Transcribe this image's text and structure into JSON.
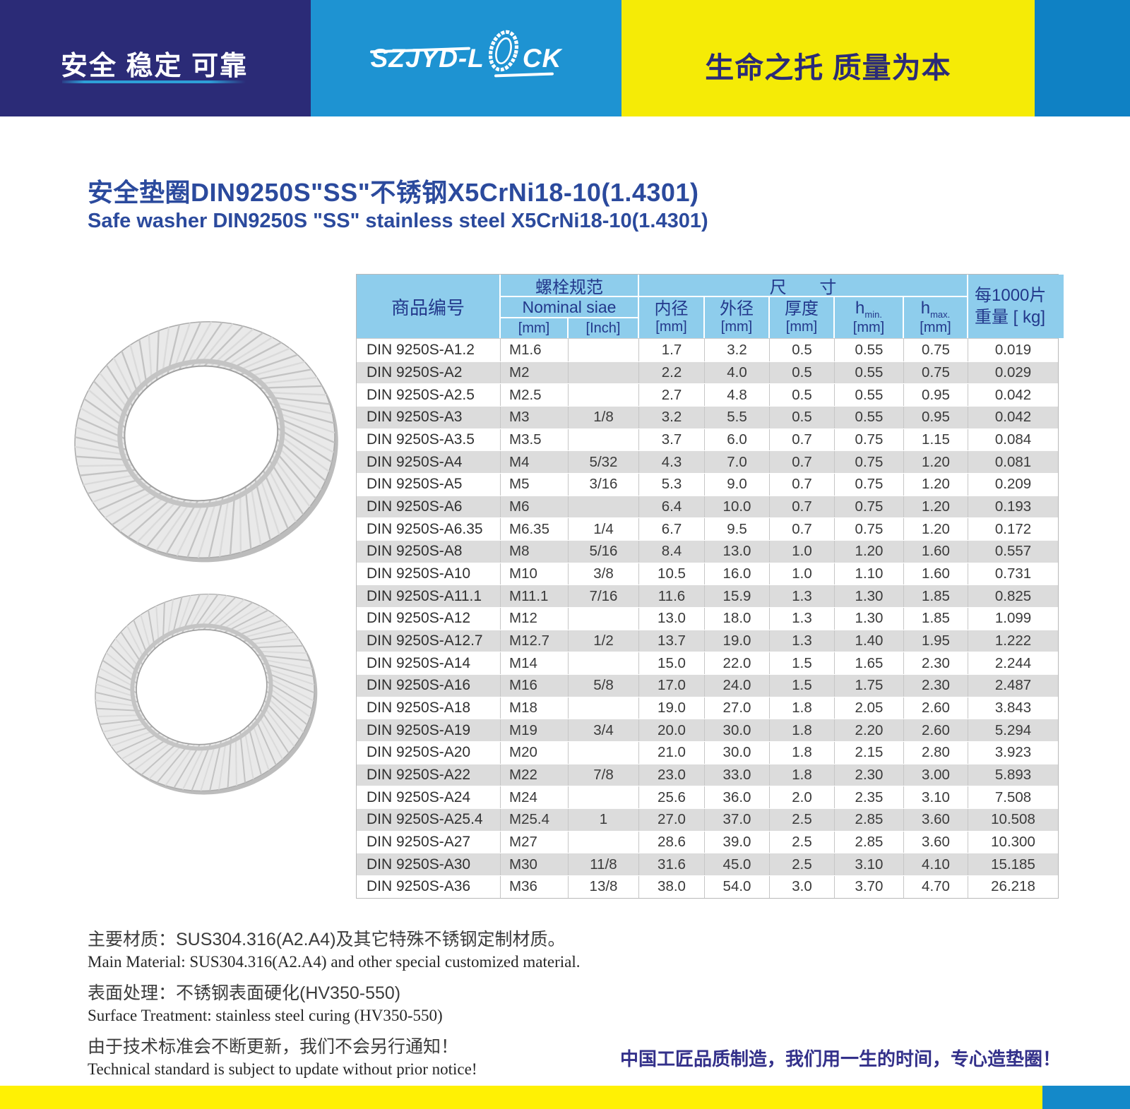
{
  "header": {
    "slogan_left": "安全 稳定 可靠",
    "logo_prefix": "SZJYD-L",
    "logo_suffix": "CK",
    "slogan_right": "生命之托  质量为本"
  },
  "title": {
    "zh": "安全垫圈DIN9250S\"SS\"不锈钢X5CrNi18-10(1.4301)",
    "en": "Safe washer DIN9250S \"SS\" stainless steel X5CrNi18-10(1.4301)"
  },
  "table": {
    "header": {
      "product_no": "商品编号",
      "bolt_spec": "螺栓规范",
      "nominal": "Nominal siae",
      "unit_mm": "[mm]",
      "unit_inch": "[Inch]",
      "size": "尺 寸",
      "inner": "内径",
      "outer": "外径",
      "thickness": "厚度",
      "h": "h",
      "h_min_sub": "min.",
      "h_max_sub": "max.",
      "weight_line1": "每1000片",
      "weight_line2": "重量 [ kg]"
    },
    "rows": [
      [
        "DIN 9250S-A1.2",
        "M1.6",
        "",
        "1.7",
        "3.2",
        "0.5",
        "0.55",
        "0.75",
        "0.019"
      ],
      [
        "DIN 9250S-A2",
        "M2",
        "",
        "2.2",
        "4.0",
        "0.5",
        "0.55",
        "0.75",
        "0.029"
      ],
      [
        "DIN 9250S-A2.5",
        "M2.5",
        "",
        "2.7",
        "4.8",
        "0.5",
        "0.55",
        "0.95",
        "0.042"
      ],
      [
        "DIN 9250S-A3",
        "M3",
        "1/8",
        "3.2",
        "5.5",
        "0.5",
        "0.55",
        "0.95",
        "0.042"
      ],
      [
        "DIN 9250S-A3.5",
        "M3.5",
        "",
        "3.7",
        "6.0",
        "0.7",
        "0.75",
        "1.15",
        "0.084"
      ],
      [
        "DIN 9250S-A4",
        "M4",
        "5/32",
        "4.3",
        "7.0",
        "0.7",
        "0.75",
        "1.20",
        "0.081"
      ],
      [
        "DIN 9250S-A5",
        "M5",
        "3/16",
        "5.3",
        "9.0",
        "0.7",
        "0.75",
        "1.20",
        "0.209"
      ],
      [
        "DIN 9250S-A6",
        "M6",
        "",
        "6.4",
        "10.0",
        "0.7",
        "0.75",
        "1.20",
        "0.193"
      ],
      [
        "DIN 9250S-A6.35",
        "M6.35",
        "1/4",
        "6.7",
        "9.5",
        "0.7",
        "0.75",
        "1.20",
        "0.172"
      ],
      [
        "DIN 9250S-A8",
        "M8",
        "5/16",
        "8.4",
        "13.0",
        "1.0",
        "1.20",
        "1.60",
        "0.557"
      ],
      [
        "DIN 9250S-A10",
        "M10",
        "3/8",
        "10.5",
        "16.0",
        "1.0",
        "1.10",
        "1.60",
        "0.731"
      ],
      [
        "DIN 9250S-A11.1",
        "M11.1",
        "7/16",
        "11.6",
        "15.9",
        "1.3",
        "1.30",
        "1.85",
        "0.825"
      ],
      [
        "DIN 9250S-A12",
        "M12",
        "",
        "13.0",
        "18.0",
        "1.3",
        "1.30",
        "1.85",
        "1.099"
      ],
      [
        "DIN 9250S-A12.7",
        "M12.7",
        "1/2",
        "13.7",
        "19.0",
        "1.3",
        "1.40",
        "1.95",
        "1.222"
      ],
      [
        "DIN 9250S-A14",
        "M14",
        "",
        "15.0",
        "22.0",
        "1.5",
        "1.65",
        "2.30",
        "2.244"
      ],
      [
        "DIN 9250S-A16",
        "M16",
        "5/8",
        "17.0",
        "24.0",
        "1.5",
        "1.75",
        "2.30",
        "2.487"
      ],
      [
        "DIN 9250S-A18",
        "M18",
        "",
        "19.0",
        "27.0",
        "1.8",
        "2.05",
        "2.60",
        "3.843"
      ],
      [
        "DIN 9250S-A19",
        "M19",
        "3/4",
        "20.0",
        "30.0",
        "1.8",
        "2.20",
        "2.60",
        "5.294"
      ],
      [
        "DIN 9250S-A20",
        "M20",
        "",
        "21.0",
        "30.0",
        "1.8",
        "2.15",
        "2.80",
        "3.923"
      ],
      [
        "DIN 9250S-A22",
        "M22",
        "7/8",
        "23.0",
        "33.0",
        "1.8",
        "2.30",
        "3.00",
        "5.893"
      ],
      [
        "DIN 9250S-A24",
        "M24",
        "",
        "25.6",
        "36.0",
        "2.0",
        "2.35",
        "3.10",
        "7.508"
      ],
      [
        "DIN 9250S-A25.4",
        "M25.4",
        "1",
        "27.0",
        "37.0",
        "2.5",
        "2.85",
        "3.60",
        "10.508"
      ],
      [
        "DIN 9250S-A27",
        "M27",
        "",
        "28.6",
        "39.0",
        "2.5",
        "2.85",
        "3.60",
        "10.300"
      ],
      [
        "DIN 9250S-A30",
        "M30",
        "11/8",
        "31.6",
        "45.0",
        "2.5",
        "3.10",
        "4.10",
        "15.185"
      ],
      [
        "DIN 9250S-A36",
        "M36",
        "13/8",
        "38.0",
        "54.0",
        "3.0",
        "3.70",
        "4.70",
        "26.218"
      ]
    ]
  },
  "notes": [
    {
      "zh": "主要材质：SUS304.316(A2.A4)及其它特殊不锈钢定制材质。",
      "en": "Main Material: SUS304.316(A2.A4) and other special customized material."
    },
    {
      "zh": "表面处理：不锈钢表面硬化(HV350-550)",
      "en": "Surface Treatment: stainless steel curing (HV350-550)"
    },
    {
      "zh": "由于技术标准会不断更新，我们不会另行通知！",
      "en": "Technical standard is subject to update without prior notice!"
    }
  ],
  "footer": {
    "slogan": "中国工匠品质制造，我们用一生的时间，专心造垫圈！"
  },
  "colors": {
    "navy": "#2B2B77",
    "logo_blue": "#1E93D2",
    "strip_blue": "#0F81C4",
    "yellow": "#F5EB06",
    "bottom_yellow": "#FFF104",
    "table_header_blue": "#8ECDEC",
    "table_header_text": "#23388B",
    "title_blue": "#2B4A9D",
    "row_gray": "#DCDCDC",
    "footer_slogan_navy": "#33308A"
  }
}
